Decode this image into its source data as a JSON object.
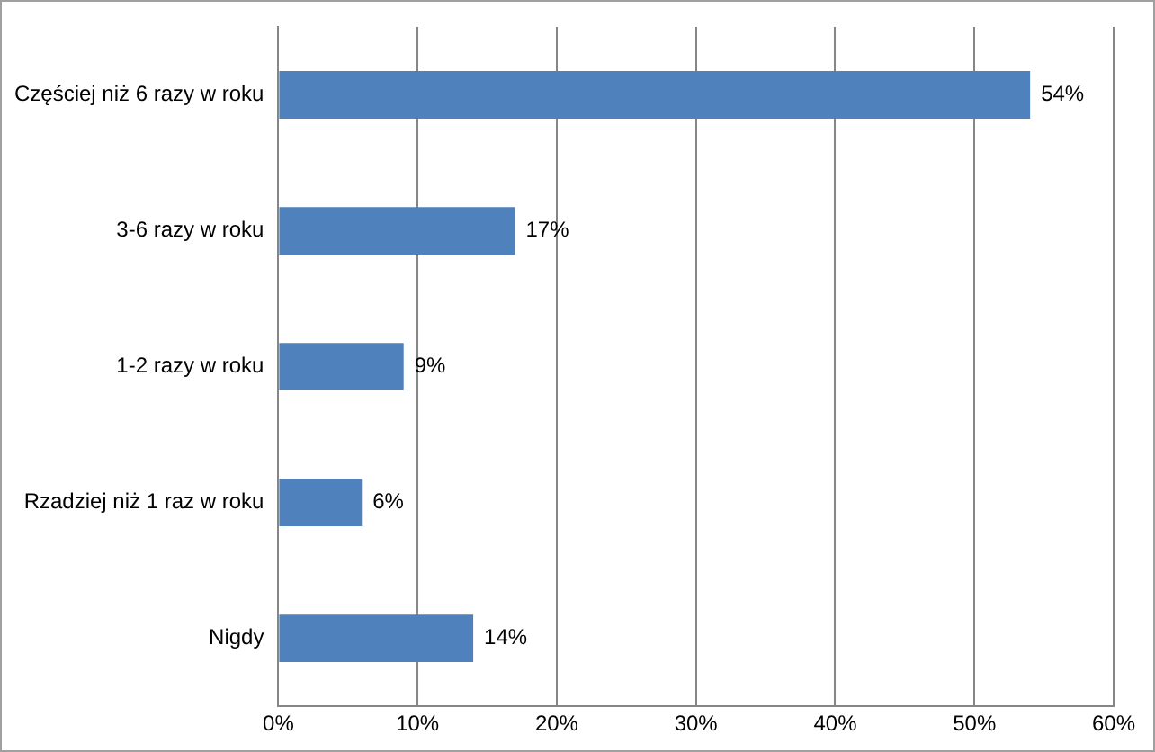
{
  "chart_data": {
    "type": "bar",
    "orientation": "horizontal",
    "categories": [
      "Częściej niż 6 razy w roku",
      "3-6 razy w roku",
      "1-2 razy w roku",
      "Rzadziej niż 1 raz w roku",
      "Nigdy"
    ],
    "values": [
      54,
      17,
      9,
      6,
      14
    ],
    "value_labels": [
      "54%",
      "17%",
      "9%",
      "6%",
      "14%"
    ],
    "color": "#4f81bd",
    "xlim": [
      0,
      60
    ],
    "xticks": [
      {
        "value": 0,
        "label": "0%"
      },
      {
        "value": 10,
        "label": "10%"
      },
      {
        "value": 20,
        "label": "20%"
      },
      {
        "value": 30,
        "label": "30%"
      },
      {
        "value": 40,
        "label": "40%"
      },
      {
        "value": 50,
        "label": "50%"
      },
      {
        "value": 60,
        "label": "60%"
      }
    ],
    "grid": "x",
    "legend": false
  }
}
